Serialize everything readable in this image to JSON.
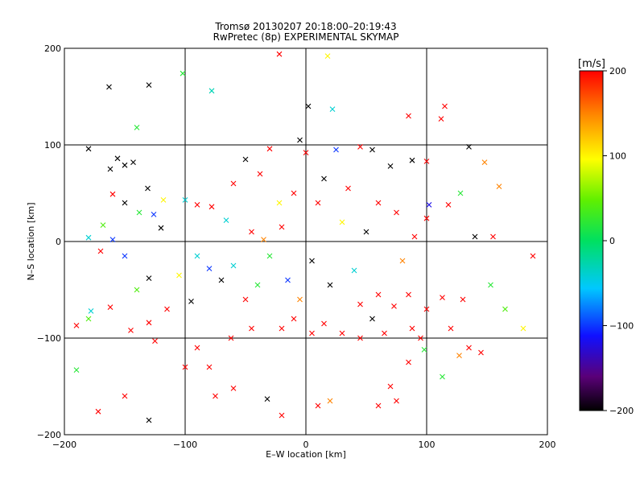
{
  "chart_data": {
    "type": "scatter",
    "title": "Tromsø 20130207 20:18:00–20:19:43",
    "subtitle": "RwPretec (8p) EXPERIMENTAL SKYMAP",
    "xlabel": "E–W location [km]",
    "ylabel": "N–S location [km]",
    "xlim": [
      -200,
      200
    ],
    "ylim": [
      -200,
      200
    ],
    "xticks": [
      -200,
      -100,
      0,
      100,
      200
    ],
    "yticks": [
      -200,
      -100,
      0,
      100,
      200
    ],
    "grid": true,
    "colorbar": {
      "label": "[m/s]",
      "range": [
        -200,
        200
      ],
      "ticks": [
        -200,
        -100,
        0,
        100,
        200
      ],
      "colormap": "rainbow: black-purple-blue-cyan-green-yellow-orange-red"
    },
    "markers": [
      "x",
      "dot"
    ],
    "points": [
      {
        "x": -163,
        "y": 160,
        "v": -200,
        "m": "x"
      },
      {
        "x": -130,
        "y": 162,
        "v": -200,
        "m": "x"
      },
      {
        "x": -102,
        "y": 174,
        "v": 20,
        "m": "x"
      },
      {
        "x": -78,
        "y": 156,
        "v": -30,
        "m": "x"
      },
      {
        "x": -22,
        "y": 194,
        "v": 200,
        "m": "x"
      },
      {
        "x": 18,
        "y": 192,
        "v": 100,
        "m": "x"
      },
      {
        "x": 2,
        "y": 140,
        "v": -200,
        "m": "x"
      },
      {
        "x": 22,
        "y": 137,
        "v": -40,
        "m": "x"
      },
      {
        "x": 85,
        "y": 130,
        "v": 200,
        "m": "x"
      },
      {
        "x": 112,
        "y": 127,
        "v": 200,
        "m": "x"
      },
      {
        "x": 115,
        "y": 140,
        "v": 200,
        "m": "x"
      },
      {
        "x": -140,
        "y": 118,
        "v": 20,
        "m": "x"
      },
      {
        "x": -180,
        "y": 96,
        "v": -200,
        "m": "x"
      },
      {
        "x": -156,
        "y": 86,
        "v": -200,
        "m": "x"
      },
      {
        "x": -162,
        "y": 75,
        "v": -200,
        "m": "x"
      },
      {
        "x": -143,
        "y": 82,
        "v": -200,
        "m": "x"
      },
      {
        "x": -150,
        "y": 79,
        "v": -200,
        "m": "x"
      },
      {
        "x": -131,
        "y": 55,
        "v": -200,
        "m": "x"
      },
      {
        "x": -160,
        "y": 49,
        "v": 200,
        "m": "x"
      },
      {
        "x": -150,
        "y": 40,
        "v": -200,
        "m": "x"
      },
      {
        "x": -138,
        "y": 30,
        "v": 20,
        "m": "x"
      },
      {
        "x": -168,
        "y": 17,
        "v": 40,
        "m": "x"
      },
      {
        "x": -180,
        "y": 4,
        "v": -40,
        "m": "x"
      },
      {
        "x": -160,
        "y": 2,
        "v": -100,
        "m": "x"
      },
      {
        "x": -126,
        "y": 28,
        "v": -100,
        "m": "x"
      },
      {
        "x": -118,
        "y": 43,
        "v": 100,
        "m": "x"
      },
      {
        "x": -100,
        "y": 43,
        "v": -40,
        "m": "x"
      },
      {
        "x": -90,
        "y": 38,
        "v": 200,
        "m": "x"
      },
      {
        "x": -78,
        "y": 36,
        "v": 200,
        "m": "x"
      },
      {
        "x": -66,
        "y": 22,
        "v": -40,
        "m": "x"
      },
      {
        "x": -60,
        "y": 60,
        "v": 200,
        "m": "x"
      },
      {
        "x": -38,
        "y": 70,
        "v": 200,
        "m": "x"
      },
      {
        "x": -30,
        "y": 96,
        "v": 200,
        "m": "x"
      },
      {
        "x": -5,
        "y": 105,
        "v": -200,
        "m": "x"
      },
      {
        "x": 0,
        "y": 92,
        "v": 200,
        "m": "x"
      },
      {
        "x": 25,
        "y": 95,
        "v": -100,
        "m": "x"
      },
      {
        "x": 45,
        "y": 98,
        "v": 200,
        "m": "x"
      },
      {
        "x": 55,
        "y": 95,
        "v": -200,
        "m": "x"
      },
      {
        "x": 70,
        "y": 78,
        "v": -200,
        "m": "x"
      },
      {
        "x": 88,
        "y": 84,
        "v": -200,
        "m": "x"
      },
      {
        "x": 100,
        "y": 83,
        "v": 200,
        "m": "x"
      },
      {
        "x": 135,
        "y": 98,
        "v": -200,
        "m": "x"
      },
      {
        "x": 148,
        "y": 82,
        "v": 150,
        "m": "x"
      },
      {
        "x": 160,
        "y": 57,
        "v": 150,
        "m": "x"
      },
      {
        "x": 128,
        "y": 50,
        "v": 20,
        "m": "x"
      },
      {
        "x": 118,
        "y": 38,
        "v": 200,
        "m": "x"
      },
      {
        "x": 102,
        "y": 38,
        "v": -120,
        "m": "x"
      },
      {
        "x": 100,
        "y": 24,
        "v": 200,
        "m": "x"
      },
      {
        "x": 90,
        "y": 5,
        "v": 200,
        "m": "x"
      },
      {
        "x": 140,
        "y": 5,
        "v": -200,
        "m": "x"
      },
      {
        "x": 155,
        "y": 5,
        "v": 200,
        "m": "x"
      },
      {
        "x": 188,
        "y": -15,
        "v": 200,
        "m": "x"
      },
      {
        "x": 153,
        "y": -45,
        "v": 20,
        "m": "x"
      },
      {
        "x": 130,
        "y": -60,
        "v": 200,
        "m": "x"
      },
      {
        "x": 113,
        "y": -58,
        "v": 200,
        "m": "x"
      },
      {
        "x": 85,
        "y": -55,
        "v": 200,
        "m": "x"
      },
      {
        "x": 73,
        "y": -67,
        "v": 200,
        "m": "x"
      },
      {
        "x": 88,
        "y": -90,
        "v": 200,
        "m": "x"
      },
      {
        "x": 120,
        "y": -90,
        "v": 200,
        "m": "x"
      },
      {
        "x": 135,
        "y": -110,
        "v": 200,
        "m": "x"
      },
      {
        "x": 145,
        "y": -115,
        "v": 200,
        "m": "x"
      },
      {
        "x": 127,
        "y": -118,
        "v": 150,
        "m": "x"
      },
      {
        "x": 113,
        "y": -140,
        "v": 20,
        "m": "x"
      },
      {
        "x": 85,
        "y": -125,
        "v": 200,
        "m": "x"
      },
      {
        "x": 70,
        "y": -150,
        "v": 200,
        "m": "x"
      },
      {
        "x": 60,
        "y": -170,
        "v": 200,
        "m": "x"
      },
      {
        "x": 75,
        "y": -165,
        "v": 200,
        "m": "x"
      },
      {
        "x": 20,
        "y": -165,
        "v": 150,
        "m": "x"
      },
      {
        "x": 10,
        "y": -170,
        "v": 200,
        "m": "x"
      },
      {
        "x": -20,
        "y": -180,
        "v": 200,
        "m": "x"
      },
      {
        "x": -32,
        "y": -163,
        "v": -200,
        "m": "x"
      },
      {
        "x": -60,
        "y": -152,
        "v": 200,
        "m": "x"
      },
      {
        "x": -75,
        "y": -160,
        "v": 200,
        "m": "x"
      },
      {
        "x": -80,
        "y": -130,
        "v": 200,
        "m": "x"
      },
      {
        "x": -100,
        "y": -130,
        "v": 200,
        "m": "x"
      },
      {
        "x": -125,
        "y": -103,
        "v": 200,
        "m": "x"
      },
      {
        "x": -145,
        "y": -92,
        "v": 200,
        "m": "x"
      },
      {
        "x": -150,
        "y": -160,
        "v": 200,
        "m": "x"
      },
      {
        "x": -172,
        "y": -176,
        "v": 200,
        "m": "x"
      },
      {
        "x": -190,
        "y": -133,
        "v": 20,
        "m": "x"
      },
      {
        "x": -190,
        "y": -87,
        "v": 200,
        "m": "x"
      },
      {
        "x": -180,
        "y": -80,
        "v": 40,
        "m": "x"
      },
      {
        "x": -178,
        "y": -72,
        "v": -40,
        "m": "x"
      },
      {
        "x": -162,
        "y": -68,
        "v": 200,
        "m": "x"
      },
      {
        "x": -130,
        "y": -84,
        "v": 200,
        "m": "x"
      },
      {
        "x": -115,
        "y": -70,
        "v": 200,
        "m": "x"
      },
      {
        "x": -95,
        "y": -62,
        "v": -200,
        "m": "x"
      },
      {
        "x": -105,
        "y": -35,
        "v": 100,
        "m": "x"
      },
      {
        "x": -130,
        "y": -38,
        "v": -200,
        "m": "x"
      },
      {
        "x": -140,
        "y": -50,
        "v": 40,
        "m": "x"
      },
      {
        "x": -150,
        "y": -15,
        "v": -100,
        "m": "x"
      },
      {
        "x": -130,
        "y": -185,
        "v": -200,
        "m": "x"
      },
      {
        "x": -90,
        "y": -110,
        "v": 200,
        "m": "x"
      },
      {
        "x": -62,
        "y": -100,
        "v": 200,
        "m": "x"
      },
      {
        "x": -45,
        "y": -90,
        "v": 200,
        "m": "x"
      },
      {
        "x": -20,
        "y": -90,
        "v": 200,
        "m": "x"
      },
      {
        "x": -10,
        "y": -80,
        "v": 200,
        "m": "x"
      },
      {
        "x": 5,
        "y": -95,
        "v": 200,
        "m": "x"
      },
      {
        "x": 15,
        "y": -85,
        "v": 200,
        "m": "x"
      },
      {
        "x": 30,
        "y": -95,
        "v": 200,
        "m": "x"
      },
      {
        "x": 45,
        "y": -100,
        "v": 200,
        "m": "x"
      },
      {
        "x": 55,
        "y": -80,
        "v": -200,
        "m": "x"
      },
      {
        "x": 65,
        "y": -95,
        "v": 200,
        "m": "x"
      },
      {
        "x": 100,
        "y": -70,
        "v": 200,
        "m": "x"
      },
      {
        "x": 98,
        "y": -112,
        "v": 20,
        "m": "x"
      },
      {
        "x": 95,
        "y": -100,
        "v": 200,
        "m": "x"
      },
      {
        "x": -60,
        "y": -25,
        "v": -40,
        "m": "x"
      },
      {
        "x": -70,
        "y": -40,
        "v": -200,
        "m": "x"
      },
      {
        "x": -80,
        "y": -28,
        "v": -100,
        "m": "x"
      },
      {
        "x": -90,
        "y": -15,
        "v": -40,
        "m": "x"
      },
      {
        "x": -45,
        "y": 10,
        "v": 200,
        "m": "x"
      },
      {
        "x": -35,
        "y": 2,
        "v": 150,
        "m": "x"
      },
      {
        "x": -20,
        "y": 15,
        "v": 200,
        "m": "x"
      },
      {
        "x": 10,
        "y": 40,
        "v": 200,
        "m": "x"
      },
      {
        "x": -10,
        "y": 50,
        "v": 200,
        "m": "x"
      },
      {
        "x": -22,
        "y": 40,
        "v": 100,
        "m": "x"
      },
      {
        "x": 35,
        "y": 55,
        "v": 200,
        "m": "x"
      },
      {
        "x": 60,
        "y": 40,
        "v": 200,
        "m": "x"
      },
      {
        "x": 75,
        "y": 30,
        "v": 200,
        "m": "x"
      },
      {
        "x": 40,
        "y": -30,
        "v": -40,
        "m": "x"
      },
      {
        "x": 20,
        "y": -45,
        "v": -200,
        "m": "x"
      },
      {
        "x": -15,
        "y": -40,
        "v": -100,
        "m": "x"
      },
      {
        "x": 5,
        "y": -20,
        "v": -200,
        "m": "x"
      },
      {
        "x": 60,
        "y": -55,
        "v": 200,
        "m": "x"
      },
      {
        "x": -50,
        "y": -60,
        "v": 200,
        "m": "x"
      },
      {
        "x": 30,
        "y": 20,
        "v": 100,
        "m": "x"
      },
      {
        "x": 50,
        "y": 10,
        "v": -200,
        "m": "x"
      },
      {
        "x": -30,
        "y": -15,
        "v": 20,
        "m": "x"
      },
      {
        "x": 45,
        "y": -65,
        "v": 200,
        "m": "x"
      },
      {
        "x": -5,
        "y": -60,
        "v": 150,
        "m": "x"
      },
      {
        "x": -40,
        "y": -45,
        "v": 20,
        "m": "x"
      },
      {
        "x": 15,
        "y": 65,
        "v": -200,
        "m": "x"
      },
      {
        "x": -50,
        "y": 85,
        "v": -200,
        "m": "x"
      },
      {
        "x": 80,
        "y": -20,
        "v": 150,
        "m": "x"
      },
      {
        "x": -120,
        "y": 14,
        "v": -200,
        "m": "x"
      },
      {
        "x": -170,
        "y": -10,
        "v": 200,
        "m": "x"
      },
      {
        "x": 165,
        "y": -70,
        "v": 40,
        "m": "x"
      },
      {
        "x": 180,
        "y": -90,
        "v": 100,
        "m": "x"
      }
    ]
  }
}
